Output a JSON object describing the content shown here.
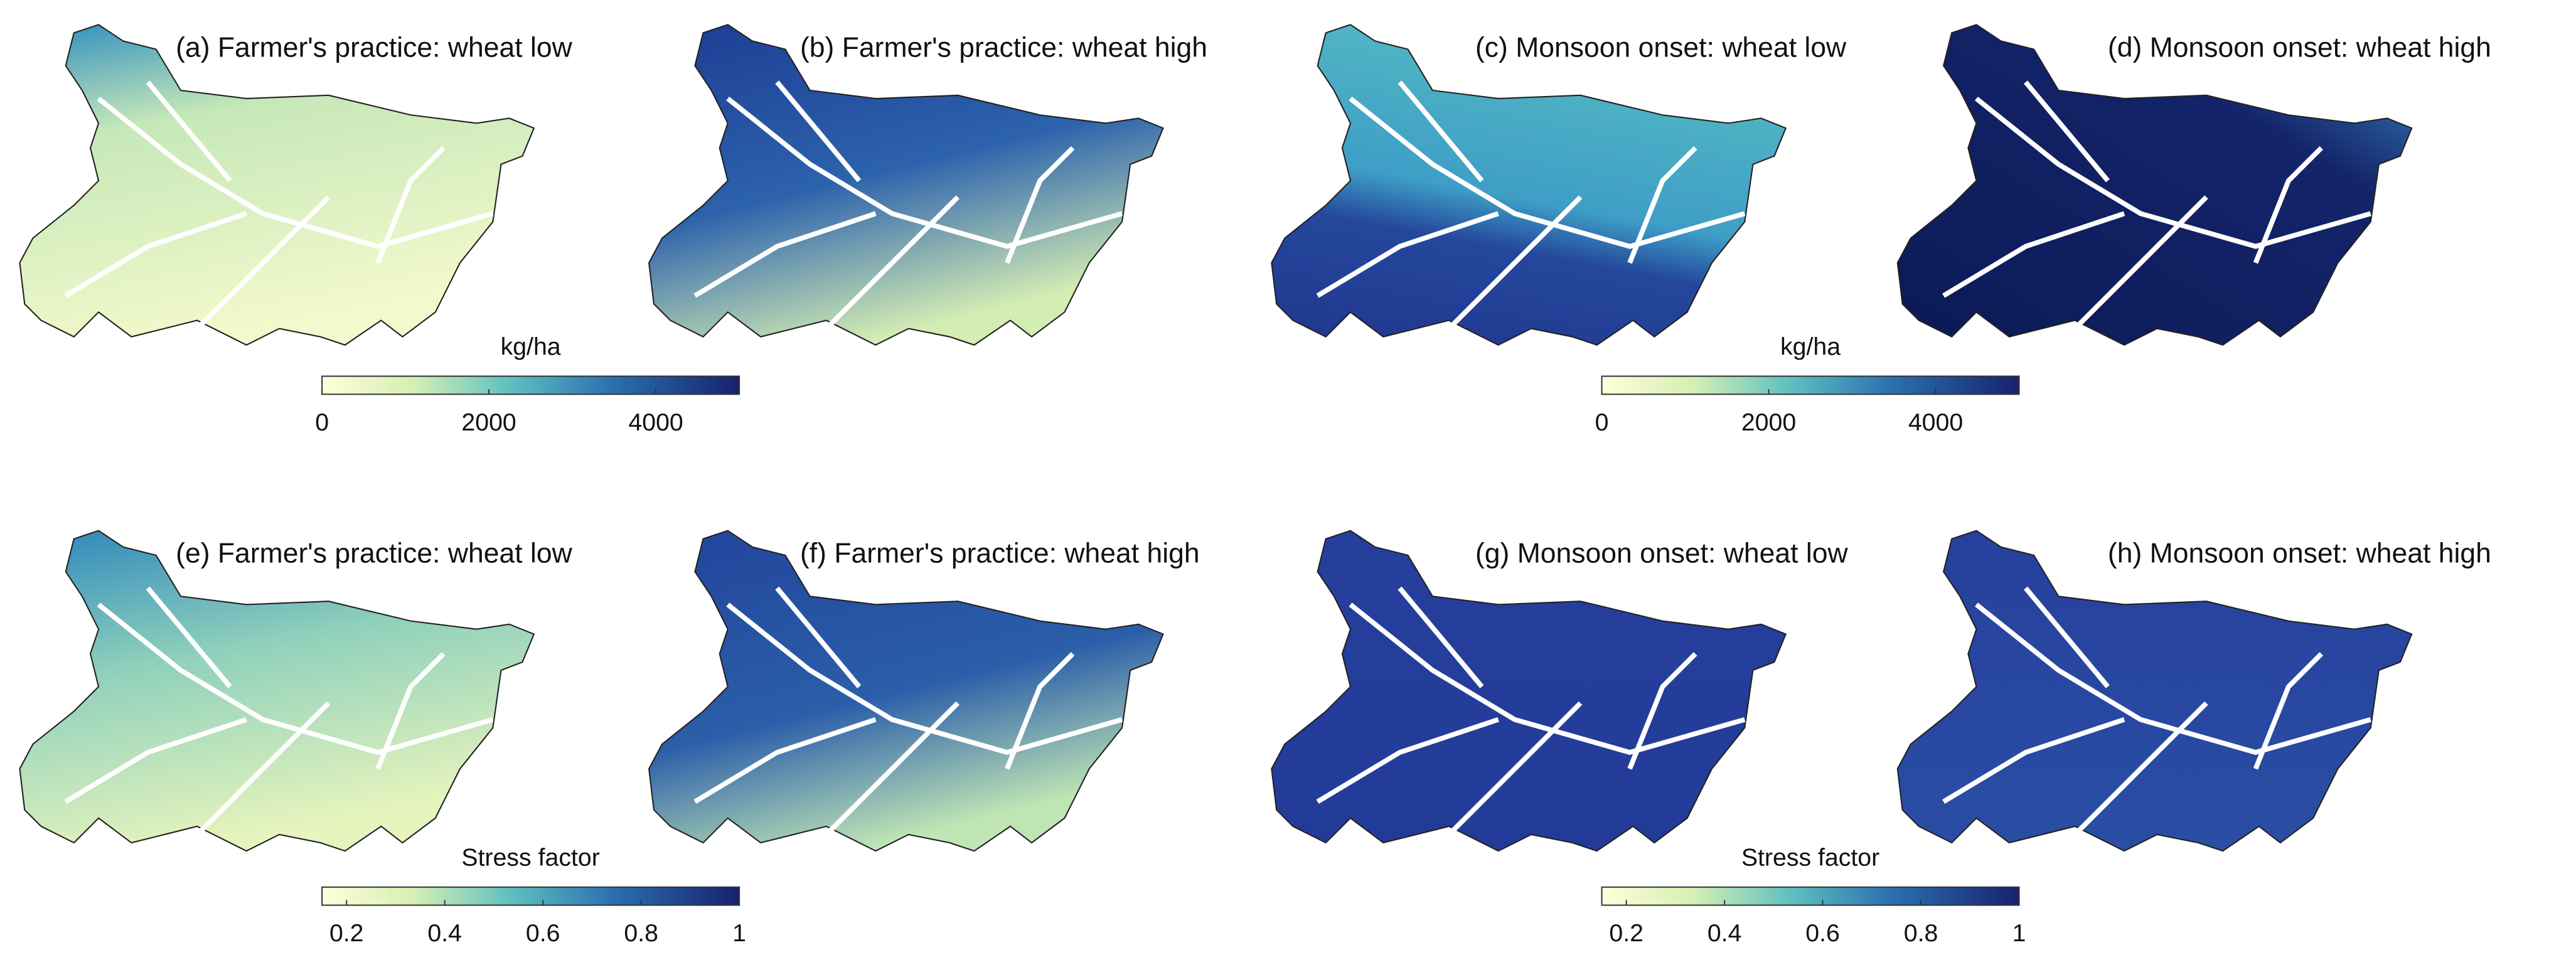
{
  "panels": [
    {
      "title": "(a) Farmer's practice: wheat low"
    },
    {
      "title": "(b) Farmer's practice: wheat high"
    },
    {
      "title": "(c) Monsoon onset: wheat low"
    },
    {
      "title": "(d) Monsoon onset: wheat high"
    },
    {
      "title": "(e) Farmer's practice: wheat low"
    },
    {
      "title": "(f) Farmer's practice: wheat high"
    },
    {
      "title": "(g) Monsoon onset: wheat low"
    },
    {
      "title": "(h) Monsoon onset: wheat high"
    }
  ],
  "colorbars": [
    {
      "title": "kg/ha",
      "lim": [
        0,
        5000
      ],
      "ticks": [
        0,
        2000,
        4000
      ]
    },
    {
      "title": "kg/ha",
      "lim": [
        0,
        5000
      ],
      "ticks": [
        0,
        2000,
        4000
      ]
    },
    {
      "title": "Stress factor",
      "lim": [
        0.15,
        1
      ],
      "ticks": [
        0.2,
        0.4,
        0.6,
        0.8,
        1
      ]
    },
    {
      "title": "Stress factor",
      "lim": [
        0.15,
        1
      ],
      "ticks": [
        0.2,
        0.4,
        0.6,
        0.8,
        1
      ]
    }
  ]
}
